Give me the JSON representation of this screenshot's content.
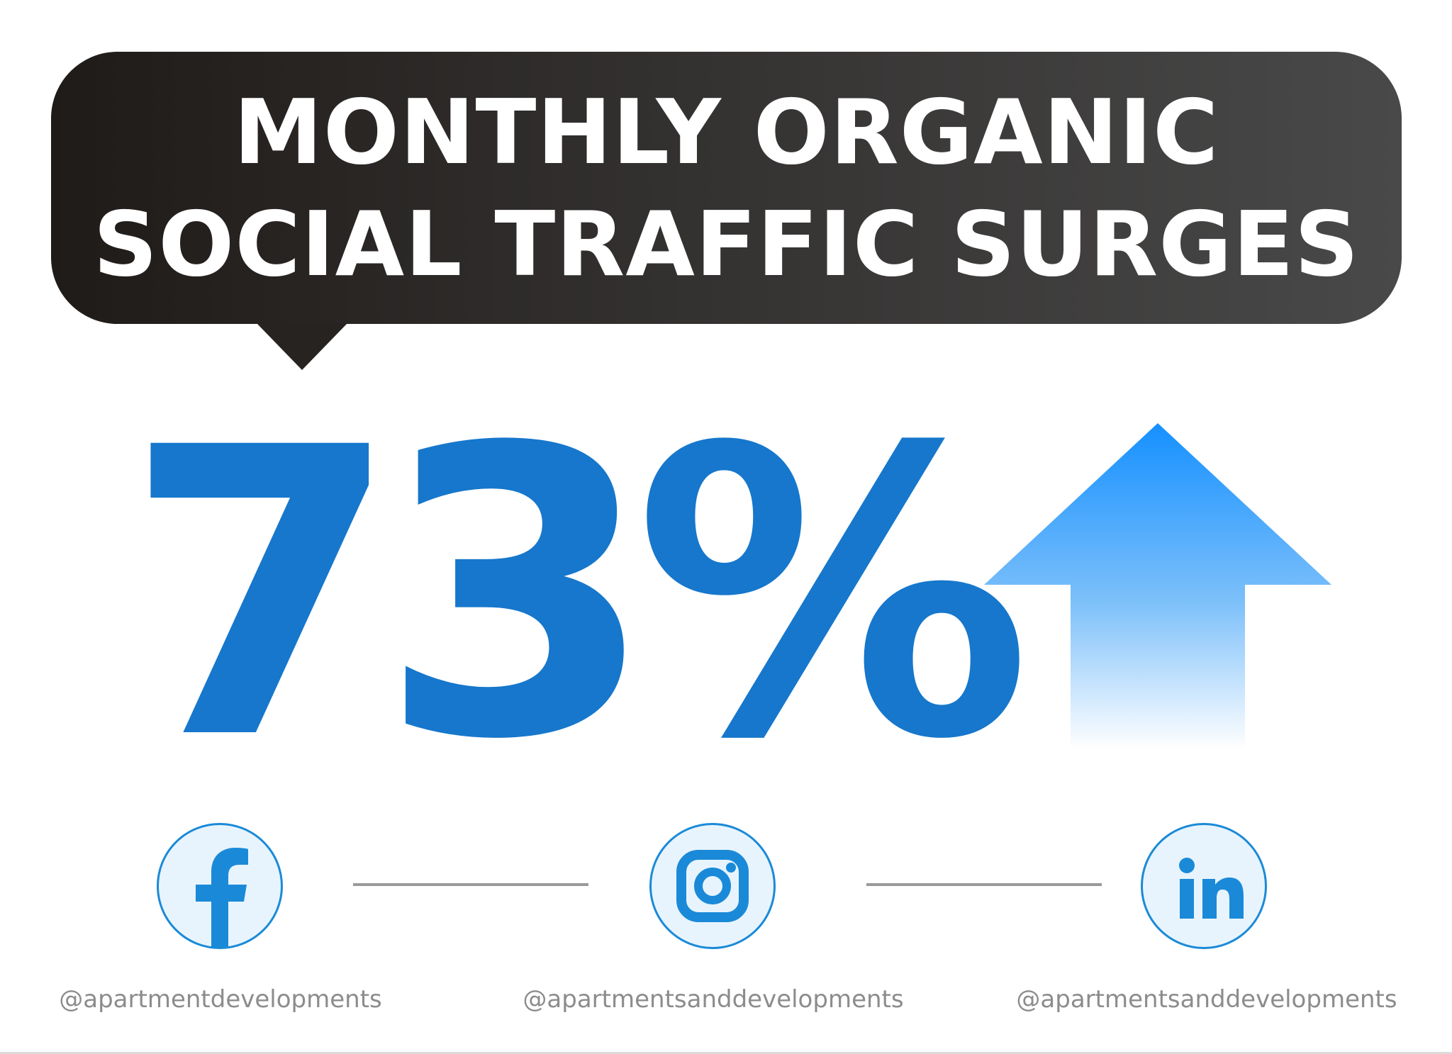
{
  "headline": {
    "line1": "MONTHLY ORGANIC",
    "line2": "SOCIAL TRAFFIC SURGES"
  },
  "stat": {
    "value": "73%",
    "trend": "up"
  },
  "colors": {
    "stat_blue": "#1677cc",
    "arrow_top": "#1590ff",
    "icon_blue": "#1a8ad8",
    "bubble_dark": "#262321"
  },
  "social": [
    {
      "network": "facebook",
      "icon": "facebook-icon",
      "handle": "@apartmentdevelopments"
    },
    {
      "network": "instagram",
      "icon": "instagram-icon",
      "handle": "@apartmentsanddevelopments"
    },
    {
      "network": "linkedin",
      "icon": "linkedin-icon",
      "handle": "@apartmentsanddevelopments"
    }
  ]
}
